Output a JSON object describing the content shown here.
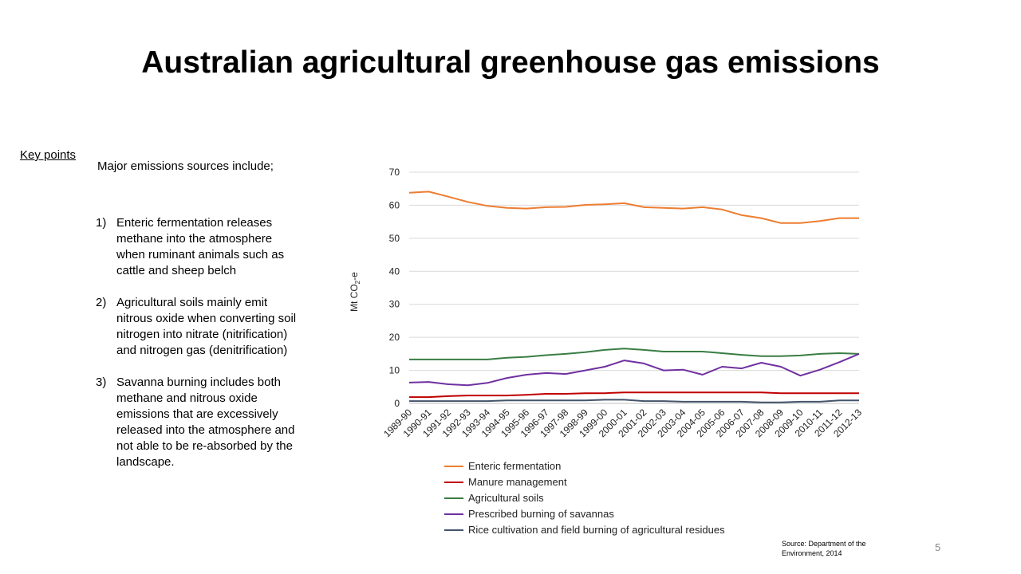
{
  "slide": {
    "title": "Australian agricultural greenhouse gas emissions",
    "key_points_label": "Key points",
    "intro": "Major emissions sources include;",
    "points": [
      {
        "num": "1)",
        "text": "Enteric fermentation releases methane into the atmosphere when ruminant animals such as cattle and sheep belch"
      },
      {
        "num": "2)",
        "text": "Agricultural soils mainly emit nitrous oxide when converting soil nitrogen into nitrate (nitrification) and nitrogen gas (denitrification)"
      },
      {
        "num": "3)",
        "text": "Savanna burning includes both methane and nitrous oxide emissions that are excessively released into the atmosphere and not able to be re-absorbed by the landscape."
      }
    ],
    "source": "Source: Department of the Environment, 2014",
    "page_number": "5"
  },
  "chart_data": {
    "type": "line",
    "ylabel_main": "Mt CO",
    "ylabel_sub": "2",
    "ylabel_suffix": "-e",
    "ylim": [
      0,
      70
    ],
    "yticks": [
      0,
      10,
      20,
      30,
      40,
      50,
      60,
      70
    ],
    "grid": true,
    "legend_position": "bottom",
    "categories": [
      "1989-90",
      "1990-91",
      "1991-92",
      "1992-93",
      "1993-94",
      "1994-95",
      "1995-96",
      "1996-97",
      "1997-98",
      "1998-99",
      "1999-00",
      "2000-01",
      "2001-02",
      "2002-03",
      "2003-04",
      "2004-05",
      "2005-06",
      "2006-07",
      "2007-08",
      "2008-09",
      "2009-10",
      "2010-11",
      "2011-12",
      "2012-13"
    ],
    "series": [
      {
        "name": "Enteric fermentation",
        "color": "#ED7D31",
        "values": [
          63.8,
          64.1,
          62.6,
          61.0,
          59.8,
          59.2,
          59.0,
          59.4,
          59.5,
          60.1,
          60.3,
          60.6,
          59.4,
          59.2,
          59.0,
          59.4,
          58.7,
          57.0,
          56.1,
          54.6,
          54.6,
          55.2,
          56.1,
          56.1
        ]
      },
      {
        "name": "Manure management",
        "color": "#C00000",
        "values": [
          1.9,
          1.9,
          2.2,
          2.4,
          2.4,
          2.4,
          2.6,
          2.9,
          2.9,
          3.1,
          3.1,
          3.3,
          3.3,
          3.3,
          3.3,
          3.3,
          3.3,
          3.3,
          3.3,
          3.1,
          3.1,
          3.1,
          3.1,
          3.1
        ]
      },
      {
        "name": "Agricultural soils",
        "color": "#3A7D44",
        "values": [
          13.3,
          13.3,
          13.3,
          13.3,
          13.3,
          13.8,
          14.1,
          14.6,
          15.0,
          15.5,
          16.2,
          16.6,
          16.2,
          15.7,
          15.7,
          15.7,
          15.2,
          14.7,
          14.3,
          14.3,
          14.5,
          15.0,
          15.2,
          15.0
        ]
      },
      {
        "name": "Prescribed burning of savannas",
        "color": "#7030A0",
        "values": [
          6.3,
          6.5,
          5.8,
          5.5,
          6.2,
          7.7,
          8.7,
          9.2,
          8.9,
          10.0,
          11.1,
          13.0,
          12.1,
          10.0,
          10.2,
          8.7,
          11.1,
          10.6,
          12.3,
          11.1,
          8.4,
          10.2,
          12.5,
          15.0
        ]
      },
      {
        "name": "Rice cultivation and field burning of agricultural residues",
        "color": "#44546A",
        "values": [
          0.7,
          0.7,
          0.7,
          0.7,
          0.7,
          0.9,
          0.9,
          0.9,
          0.9,
          0.9,
          1.1,
          1.1,
          0.7,
          0.7,
          0.5,
          0.5,
          0.5,
          0.5,
          0.3,
          0.3,
          0.5,
          0.5,
          0.9,
          0.9
        ]
      }
    ]
  }
}
